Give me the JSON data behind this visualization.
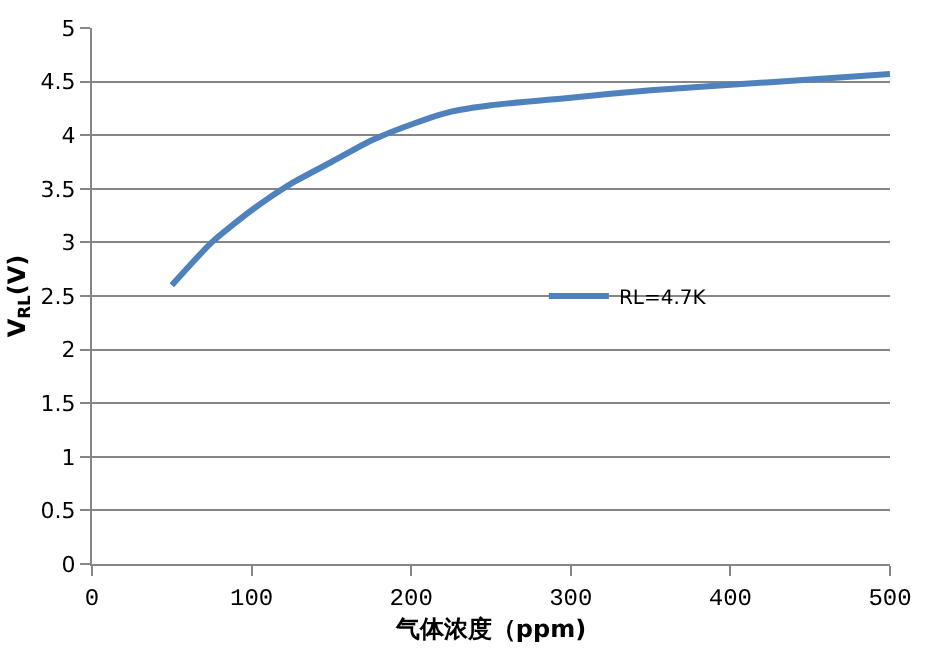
{
  "chart_data": {
    "type": "line",
    "xlabel": "气体浓度（ppm)",
    "ylabel": "V$_{RL}$(V)",
    "x": [
      50,
      75,
      100,
      125,
      150,
      175,
      200,
      225,
      250,
      300,
      350,
      400,
      450,
      500
    ],
    "series": [
      {
        "name": "RL=4.7K",
        "color": "#4f81bd",
        "values": [
          2.6,
          3.0,
          3.3,
          3.55,
          3.75,
          3.95,
          4.1,
          4.22,
          4.28,
          4.35,
          4.42,
          4.47,
          4.52,
          4.57
        ]
      }
    ],
    "xlim": [
      0,
      500
    ],
    "xticks": [
      0,
      100,
      200,
      300,
      400,
      500
    ],
    "ylim": [
      0,
      5
    ],
    "yticks": [
      0,
      0.5,
      1,
      1.5,
      2,
      2.5,
      3,
      3.5,
      4,
      4.5,
      5
    ],
    "grid": "y",
    "legend": "right",
    "marker": "none",
    "line_style": "solid"
  }
}
